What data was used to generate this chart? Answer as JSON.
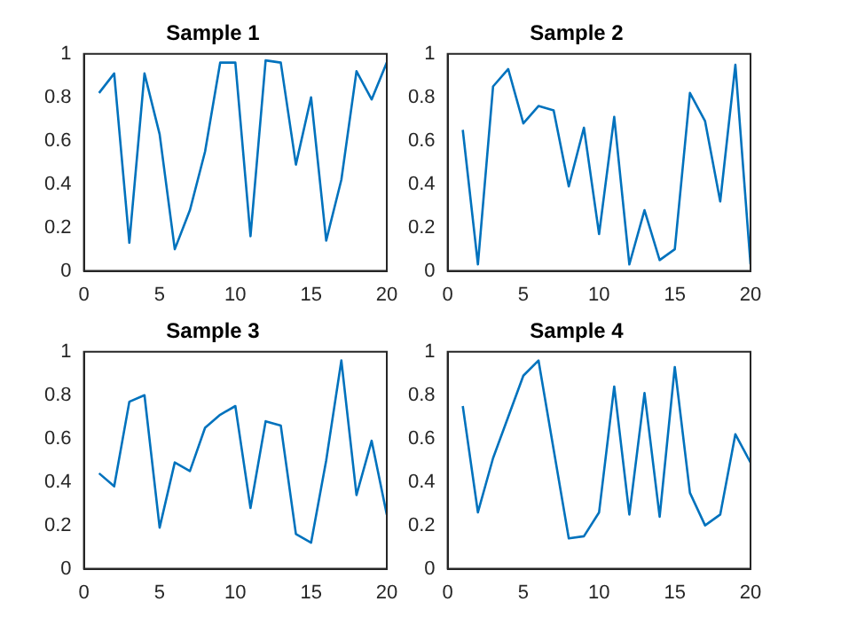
{
  "chart_data": [
    {
      "type": "line",
      "title": "Sample 1",
      "x": [
        1,
        2,
        3,
        4,
        5,
        6,
        7,
        8,
        9,
        10,
        11,
        12,
        13,
        14,
        15,
        16,
        17,
        18,
        19,
        20
      ],
      "values": [
        0.82,
        0.91,
        0.13,
        0.91,
        0.63,
        0.1,
        0.28,
        0.55,
        0.96,
        0.96,
        0.16,
        0.97,
        0.96,
        0.49,
        0.8,
        0.14,
        0.42,
        0.92,
        0.79,
        0.96
      ],
      "color": "#0072bd",
      "marker": "none",
      "xlim": [
        0,
        20
      ],
      "ylim": [
        0,
        1
      ],
      "xticks": [
        0,
        5,
        10,
        15,
        20
      ],
      "yticks": [
        0,
        0.2,
        0.4,
        0.6,
        0.8,
        1
      ]
    },
    {
      "type": "line",
      "title": "Sample 2",
      "x": [
        1,
        2,
        3,
        4,
        5,
        6,
        7,
        8,
        9,
        10,
        11,
        12,
        13,
        14,
        15,
        16,
        17,
        18,
        19,
        20
      ],
      "values": [
        0.65,
        0.03,
        0.85,
        0.93,
        0.68,
        0.76,
        0.74,
        0.39,
        0.66,
        0.17,
        0.71,
        0.03,
        0.28,
        0.05,
        0.1,
        0.82,
        0.69,
        0.32,
        0.95,
        0.03
      ],
      "color": "#0072bd",
      "marker": "none",
      "xlim": [
        0,
        20
      ],
      "ylim": [
        0,
        1
      ],
      "xticks": [
        0,
        5,
        10,
        15,
        20
      ],
      "yticks": [
        0,
        0.2,
        0.4,
        0.6,
        0.8,
        1
      ]
    },
    {
      "type": "line",
      "title": "Sample 3",
      "x": [
        1,
        2,
        3,
        4,
        5,
        6,
        7,
        8,
        9,
        10,
        11,
        12,
        13,
        14,
        15,
        16,
        17,
        18,
        19,
        20
      ],
      "values": [
        0.44,
        0.38,
        0.77,
        0.8,
        0.19,
        0.49,
        0.45,
        0.65,
        0.71,
        0.75,
        0.28,
        0.68,
        0.66,
        0.16,
        0.12,
        0.5,
        0.96,
        0.34,
        0.59,
        0.25
      ],
      "color": "#0072bd",
      "marker": "none",
      "xlim": [
        0,
        20
      ],
      "ylim": [
        0,
        1
      ],
      "xticks": [
        0,
        5,
        10,
        15,
        20
      ],
      "yticks": [
        0,
        0.2,
        0.4,
        0.6,
        0.8,
        1
      ]
    },
    {
      "type": "line",
      "title": "Sample 4",
      "x": [
        1,
        2,
        3,
        4,
        5,
        6,
        7,
        8,
        9,
        10,
        11,
        12,
        13,
        14,
        15,
        16,
        17,
        18,
        19,
        20
      ],
      "values": [
        0.75,
        0.26,
        0.51,
        0.7,
        0.89,
        0.96,
        0.55,
        0.14,
        0.15,
        0.26,
        0.84,
        0.25,
        0.81,
        0.24,
        0.93,
        0.35,
        0.2,
        0.25,
        0.62,
        0.49
      ],
      "color": "#0072bd",
      "marker": "none",
      "xlim": [
        0,
        20
      ],
      "ylim": [
        0,
        1
      ],
      "xticks": [
        0,
        5,
        10,
        15,
        20
      ],
      "yticks": [
        0,
        0.2,
        0.4,
        0.6,
        0.8,
        1
      ]
    }
  ]
}
